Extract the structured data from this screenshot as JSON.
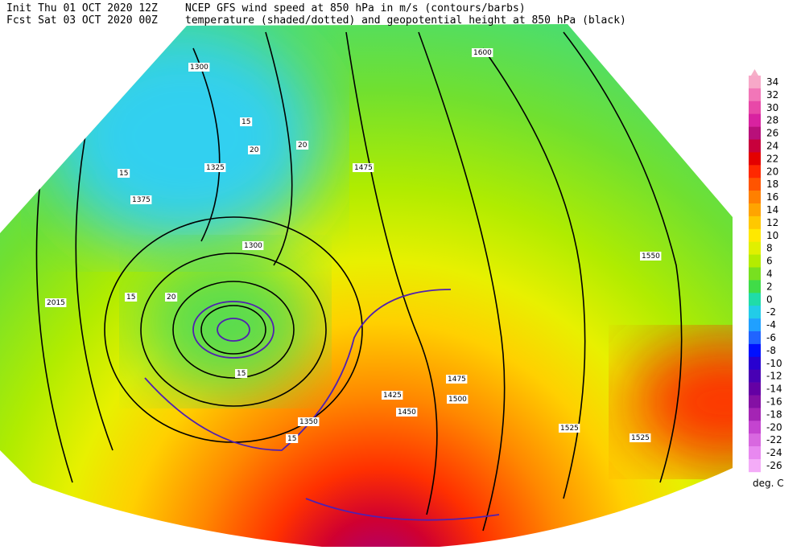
{
  "header": {
    "init": "Init  Thu 01 OCT 2020 12Z",
    "fcst": "Fcst Sat 03 OCT 2020 00Z",
    "line1": "NCEP GFS wind speed at 850 hPa in m/s (contours/barbs)",
    "line2": "temperature (shaded/dotted) and geopotential height at 850 hPa (black)"
  },
  "colorbar": {
    "labels": [
      34,
      32,
      30,
      28,
      26,
      24,
      22,
      20,
      18,
      16,
      14,
      12,
      10,
      8,
      6,
      4,
      2,
      0,
      -2,
      -4,
      -6,
      -8,
      -10,
      -12,
      -14,
      -16,
      -18,
      -20,
      -22,
      -24,
      -26
    ],
    "colors": [
      "#f7a8c8",
      "#f276b8",
      "#e848a8",
      "#d822a0",
      "#b8107a",
      "#c8003c",
      "#e40000",
      "#ff2800",
      "#ff5400",
      "#ff8000",
      "#ffa400",
      "#ffc800",
      "#ffe800",
      "#e0f000",
      "#b4ec00",
      "#78e020",
      "#40dc48",
      "#20dca8",
      "#22cce8",
      "#20a0ff",
      "#2064ff",
      "#0010ff",
      "#2800d0",
      "#4800b4",
      "#6400a4",
      "#8410a4",
      "#a424b4",
      "#c444d0",
      "#d868e0",
      "#e888f0",
      "#f4acf8"
    ],
    "unit": "deg. C"
  },
  "map_labels": [
    "1600",
    "1550",
    "1525",
    "1525",
    "1500",
    "1475",
    "1475",
    "1450",
    "1425",
    "1375",
    "1350",
    "1325",
    "1300",
    "1300",
    "2015",
    "15",
    "15",
    "20",
    "20",
    "15",
    "20",
    "15",
    "15"
  ]
}
